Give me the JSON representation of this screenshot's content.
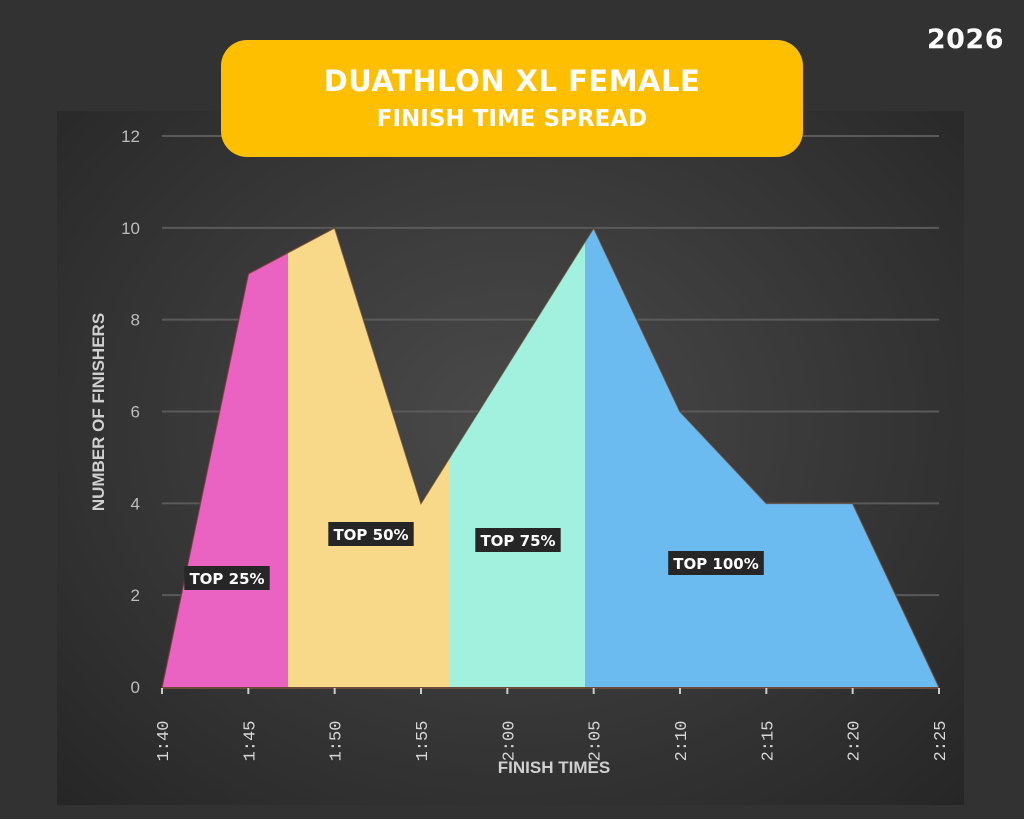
{
  "header": {
    "year": "2026",
    "title_line1": "DUATHLON XL FEMALE",
    "title_line2": "FINISH TIME SPREAD"
  },
  "colors": {
    "background": "#323232",
    "title_box": "#fdbf00",
    "top25": "#ea63c2",
    "top50": "#f8d98a",
    "top75": "#a2f0de",
    "top100": "#6bbaf0"
  },
  "segments": [
    {
      "label": "TOP 25%",
      "color": "#ea63c2"
    },
    {
      "label": "TOP 50%",
      "color": "#f8d98a"
    },
    {
      "label": "TOP 75%",
      "color": "#a2f0de"
    },
    {
      "label": "TOP 100%",
      "color": "#6bbaf0"
    }
  ],
  "chart_data": {
    "type": "area",
    "title": "DUATHLON XL FEMALE FINISH TIME SPREAD",
    "xlabel": "FINISH TIMES",
    "ylabel": "NUMBER OF FINISHERS",
    "categories": [
      "1:40",
      "1:45",
      "1:50",
      "1:55",
      "2:00",
      "2:05",
      "2:10",
      "2:15",
      "2:20",
      "2:25"
    ],
    "values": [
      0,
      9,
      10,
      4,
      7,
      10,
      6,
      4,
      4,
      0
    ],
    "ylim": [
      0,
      12
    ],
    "yticks": [
      0,
      2,
      4,
      6,
      8,
      10,
      12
    ],
    "grid": true,
    "legend": "none",
    "bands": [
      {
        "name": "TOP 25%",
        "from": "1:40",
        "to": "~1:47"
      },
      {
        "name": "TOP 50%",
        "from": "~1:47",
        "to": "~1:57"
      },
      {
        "name": "TOP 75%",
        "from": "~1:57",
        "to": "~2:04"
      },
      {
        "name": "TOP 100%",
        "from": "~2:04",
        "to": "2:25"
      }
    ]
  }
}
